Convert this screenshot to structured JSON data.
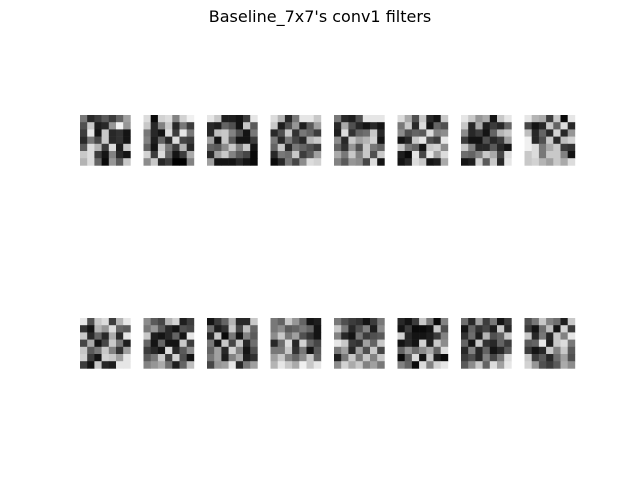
{
  "figure": {
    "title": "Baseline_7x7's conv1 filters"
  },
  "chart_data": {
    "type": "heatmap",
    "title": "Baseline_7x7's conv1 filters",
    "colormap": "gray",
    "value_range": [
      0,
      255
    ],
    "grid_rows": 2,
    "grid_cols": 8,
    "kernel_size": [
      7,
      7
    ],
    "filters": [
      [
        [
          120,
          40,
          60,
          90,
          60,
          100,
          160
        ],
        [
          80,
          200,
          30,
          40,
          150,
          240,
          150
        ],
        [
          60,
          230,
          20,
          200,
          40,
          50,
          20
        ],
        [
          40,
          120,
          70,
          200,
          40,
          50,
          20
        ],
        [
          90,
          220,
          180,
          60,
          220,
          30,
          200
        ],
        [
          200,
          220,
          60,
          20,
          130,
          40,
          20
        ],
        [
          180,
          220,
          100,
          10,
          150,
          90,
          200
        ]
      ],
      [
        [
          220,
          10,
          210,
          220,
          130,
          210,
          240
        ],
        [
          200,
          40,
          130,
          200,
          40,
          120,
          60
        ],
        [
          120,
          40,
          20,
          220,
          60,
          230,
          120
        ],
        [
          130,
          30,
          100,
          40,
          220,
          70,
          60
        ],
        [
          100,
          20,
          200,
          120,
          60,
          180,
          40
        ],
        [
          210,
          60,
          220,
          100,
          20,
          60,
          170
        ],
        [
          140,
          200,
          40,
          60,
          0,
          0,
          130
        ]
      ],
      [
        [
          230,
          200,
          30,
          30,
          20,
          60,
          230
        ],
        [
          40,
          30,
          100,
          80,
          20,
          200,
          90
        ],
        [
          40,
          190,
          200,
          130,
          80,
          20,
          120
        ],
        [
          160,
          20,
          200,
          90,
          20,
          20,
          60
        ],
        [
          100,
          90,
          140,
          200,
          130,
          200,
          20
        ],
        [
          40,
          160,
          200,
          130,
          90,
          70,
          10
        ],
        [
          160,
          20,
          20,
          20,
          40,
          20,
          10
        ]
      ],
      [
        [
          220,
          180,
          40,
          120,
          230,
          230,
          200
        ],
        [
          200,
          30,
          80,
          150,
          30,
          90,
          160
        ],
        [
          40,
          80,
          200,
          50,
          120,
          100,
          60
        ],
        [
          120,
          40,
          120,
          70,
          40,
          180,
          200
        ],
        [
          100,
          200,
          40,
          120,
          100,
          80,
          60
        ],
        [
          40,
          120,
          110,
          200,
          60,
          90,
          160
        ],
        [
          10,
          40,
          120,
          70,
          140,
          220,
          210
        ]
      ],
      [
        [
          120,
          40,
          30,
          80,
          230,
          230,
          230
        ],
        [
          40,
          170,
          80,
          40,
          20,
          40,
          20
        ],
        [
          30,
          220,
          50,
          100,
          110,
          200,
          40
        ],
        [
          140,
          40,
          200,
          160,
          180,
          210,
          20
        ],
        [
          100,
          50,
          150,
          80,
          200,
          120,
          100
        ],
        [
          170,
          120,
          200,
          130,
          200,
          80,
          200
        ],
        [
          130,
          90,
          150,
          140,
          70,
          220,
          20
        ]
      ],
      [
        [
          220,
          170,
          80,
          200,
          40,
          20,
          200
        ],
        [
          120,
          200,
          40,
          220,
          20,
          100,
          80
        ],
        [
          140,
          80,
          100,
          90,
          220,
          130,
          140
        ],
        [
          20,
          40,
          200,
          230,
          80,
          60,
          230
        ],
        [
          200,
          120,
          100,
          20,
          200,
          210,
          140
        ],
        [
          30,
          10,
          230,
          70,
          230,
          160,
          220
        ],
        [
          20,
          40,
          220,
          200,
          20,
          30,
          170
        ]
      ],
      [
        [
          230,
          200,
          150,
          170,
          20,
          200,
          230
        ],
        [
          200,
          40,
          170,
          30,
          60,
          40,
          100
        ],
        [
          140,
          40,
          60,
          20,
          100,
          180,
          200
        ],
        [
          60,
          20,
          20,
          80,
          40,
          60,
          160
        ],
        [
          200,
          130,
          40,
          40,
          90,
          40,
          20
        ],
        [
          110,
          100,
          130,
          200,
          170,
          70,
          220
        ],
        [
          20,
          30,
          210,
          90,
          200,
          40,
          230
        ]
      ],
      [
        [
          230,
          180,
          170,
          60,
          200,
          10,
          230
        ],
        [
          70,
          20,
          40,
          200,
          100,
          220,
          40
        ],
        [
          190,
          40,
          100,
          40,
          210,
          40,
          150
        ],
        [
          240,
          40,
          80,
          200,
          40,
          190,
          210
        ],
        [
          240,
          220,
          120,
          170,
          200,
          60,
          50
        ],
        [
          200,
          220,
          120,
          200,
          200,
          130,
          20
        ],
        [
          200,
          210,
          180,
          160,
          200,
          170,
          220
        ]
      ],
      [
        [
          230,
          80,
          200,
          220,
          60,
          180,
          230
        ],
        [
          50,
          20,
          180,
          150,
          220,
          100,
          90
        ],
        [
          200,
          40,
          100,
          40,
          170,
          40,
          230
        ],
        [
          70,
          170,
          20,
          70,
          200,
          120,
          30
        ],
        [
          200,
          90,
          120,
          200,
          130,
          50,
          160
        ],
        [
          210,
          60,
          20,
          210,
          200,
          160,
          230
        ],
        [
          60,
          20,
          200,
          40,
          30,
          230,
          230
        ]
      ],
      [
        [
          140,
          90,
          70,
          180,
          210,
          30,
          60
        ],
        [
          120,
          150,
          90,
          40,
          20,
          80,
          70
        ],
        [
          200,
          30,
          20,
          40,
          100,
          20,
          230
        ],
        [
          100,
          20,
          100,
          20,
          20,
          200,
          60
        ],
        [
          60,
          40,
          20,
          220,
          40,
          90,
          140
        ],
        [
          90,
          120,
          200,
          60,
          210,
          80,
          20
        ],
        [
          130,
          150,
          170,
          110,
          30,
          100,
          190
        ]
      ],
      [
        [
          20,
          60,
          100,
          180,
          40,
          40,
          200
        ],
        [
          110,
          30,
          50,
          200,
          70,
          190,
          100
        ],
        [
          40,
          200,
          10,
          120,
          20,
          130,
          90
        ],
        [
          120,
          20,
          200,
          70,
          200,
          40,
          110
        ],
        [
          100,
          160,
          40,
          210,
          130,
          20,
          80
        ],
        [
          120,
          160,
          30,
          130,
          170,
          30,
          50
        ],
        [
          70,
          150,
          160,
          230,
          40,
          120,
          160
        ]
      ],
      [
        [
          120,
          100,
          200,
          150,
          100,
          20,
          30
        ],
        [
          120,
          140,
          90,
          100,
          120,
          100,
          20
        ],
        [
          140,
          200,
          120,
          160,
          80,
          50,
          20
        ],
        [
          40,
          110,
          220,
          40,
          210,
          100,
          70
        ],
        [
          120,
          120,
          200,
          50,
          120,
          20,
          90
        ],
        [
          160,
          200,
          130,
          100,
          140,
          200,
          100
        ],
        [
          180,
          230,
          200,
          170,
          240,
          200,
          230
        ]
      ],
      [
        [
          120,
          80,
          60,
          50,
          20,
          60,
          120
        ],
        [
          200,
          120,
          40,
          80,
          130,
          30,
          140
        ],
        [
          130,
          40,
          20,
          120,
          60,
          80,
          90
        ],
        [
          230,
          200,
          60,
          50,
          160,
          100,
          200
        ],
        [
          120,
          160,
          40,
          160,
          80,
          200,
          70
        ],
        [
          30,
          120,
          200,
          120,
          200,
          130,
          200
        ],
        [
          140,
          210,
          170,
          200,
          130,
          160,
          120
        ]
      ],
      [
        [
          40,
          20,
          60,
          200,
          120,
          10,
          130
        ],
        [
          20,
          60,
          10,
          10,
          20,
          200,
          80
        ],
        [
          210,
          40,
          20,
          20,
          30,
          60,
          130
        ],
        [
          20,
          40,
          20,
          210,
          30,
          200,
          140
        ],
        [
          100,
          150,
          110,
          140,
          170,
          100,
          220
        ],
        [
          10,
          90,
          220,
          20,
          200,
          30,
          10
        ],
        [
          130,
          100,
          10,
          220,
          130,
          210,
          230
        ]
      ],
      [
        [
          110,
          40,
          160,
          60,
          120,
          20,
          60
        ],
        [
          20,
          100,
          50,
          70,
          30,
          200,
          40
        ],
        [
          50,
          110,
          30,
          180,
          80,
          100,
          200
        ],
        [
          100,
          20,
          200,
          50,
          40,
          100,
          60
        ],
        [
          40,
          130,
          40,
          100,
          20,
          40,
          90
        ],
        [
          60,
          80,
          40,
          130,
          70,
          120,
          220
        ],
        [
          90,
          140,
          200,
          100,
          220,
          160,
          230
        ]
      ],
      [
        [
          80,
          120,
          200,
          130,
          110,
          30,
          200
        ],
        [
          60,
          20,
          110,
          190,
          20,
          210,
          60
        ],
        [
          200,
          40,
          120,
          40,
          200,
          130,
          230
        ],
        [
          90,
          100,
          230,
          30,
          200,
          220,
          120
        ],
        [
          60,
          20,
          40,
          200,
          130,
          200,
          90
        ],
        [
          200,
          60,
          90,
          40,
          110,
          160,
          80
        ],
        [
          210,
          150,
          80,
          60,
          90,
          170,
          140
        ]
      ]
    ]
  }
}
